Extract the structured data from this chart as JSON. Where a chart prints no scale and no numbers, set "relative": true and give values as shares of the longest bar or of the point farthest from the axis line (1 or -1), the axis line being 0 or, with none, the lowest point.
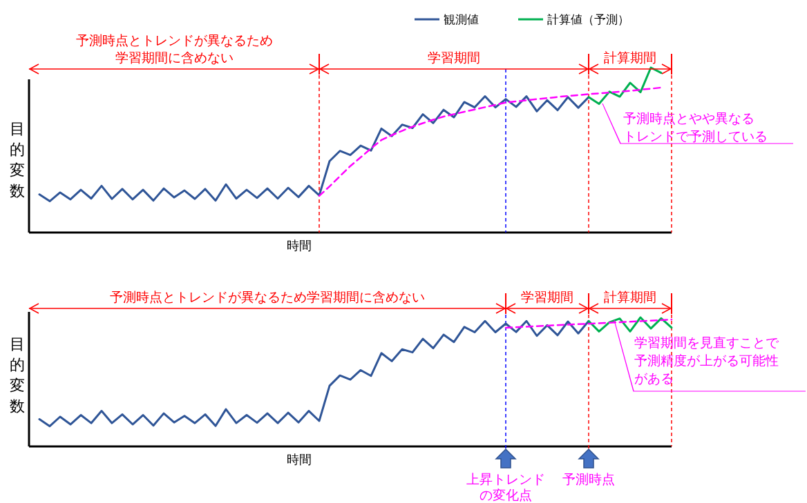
{
  "chart_data": [
    {
      "type": "line",
      "relative": true,
      "legend": "top right",
      "xlabel": "時間",
      "ylabel": "目的変数",
      "categories": [
        null,
        null,
        null,
        null,
        null,
        null,
        null,
        null,
        null,
        null,
        null,
        null,
        null,
        null,
        null,
        null,
        null,
        null,
        null,
        null,
        null,
        null,
        null,
        null,
        null,
        null,
        null,
        null,
        null,
        null,
        null,
        null,
        null,
        null,
        null,
        null,
        null,
        null,
        null,
        null,
        null,
        null,
        null,
        null,
        null,
        null,
        null,
        null,
        null,
        null,
        null,
        null,
        null,
        null,
        null,
        null,
        null,
        null,
        null,
        null,
        null,
        null,
        null
      ],
      "series": [
        {
          "name": "観測値",
          "color": "#2f5597",
          "values": [
            null,
            0.231,
            0.19,
            0.243,
            0.201,
            0.259,
            0.206,
            0.283,
            0.204,
            0.264,
            0.201,
            0.259,
            0.194,
            0.267,
            0.213,
            0.255,
            0.204,
            0.264,
            0.194,
            0.292,
            0.206,
            0.259,
            0.21,
            0.267,
            0.206,
            0.271,
            0.215,
            0.283,
            0.225,
            0.433,
            0.495,
            0.47,
            0.527,
            0.497,
            0.63,
            0.585,
            0.654,
            0.634,
            0.717,
            0.664,
            0.744,
            0.699,
            0.791,
            0.759,
            0.826,
            0.759,
            0.809,
            0.762,
            0.826,
            0.735,
            0.802,
            0.742,
            0.821,
            0.757,
            0.821,
            null,
            null,
            null,
            null,
            null,
            null,
            null,
            null
          ]
        },
        {
          "name": "計算値（予測）",
          "color": "#00b050",
          "values": [
            null,
            null,
            null,
            null,
            null,
            null,
            null,
            null,
            null,
            null,
            null,
            null,
            null,
            null,
            null,
            null,
            null,
            null,
            null,
            null,
            null,
            null,
            null,
            null,
            null,
            null,
            null,
            null,
            null,
            null,
            null,
            null,
            null,
            null,
            null,
            null,
            null,
            null,
            null,
            null,
            null,
            null,
            null,
            null,
            null,
            null,
            null,
            null,
            null,
            null,
            null,
            null,
            null,
            null,
            0.821,
            0.78,
            0.854,
            0.824,
            0.908,
            0.851,
            1.0,
            0.968,
            null
          ]
        },
        {
          "color": "#ff00ff",
          "line_style": "dashed",
          "values": [
            null,
            null,
            null,
            null,
            null,
            null,
            null,
            null,
            null,
            null,
            null,
            null,
            null,
            null,
            null,
            null,
            null,
            null,
            null,
            null,
            null,
            null,
            null,
            null,
            null,
            null,
            null,
            null,
            0.222,
            0.28,
            0.342,
            0.403,
            0.456,
            0.51,
            0.561,
            0.59,
            0.617,
            0.642,
            0.663,
            0.684,
            0.703,
            0.718,
            0.732,
            0.746,
            0.76,
            0.774,
            0.788,
            0.795,
            0.802,
            0.809,
            0.815,
            0.822,
            0.828,
            0.833,
            0.839,
            0.844,
            0.849,
            0.854,
            0.859,
            0.866,
            0.872,
            0.879,
            null
          ]
        }
      ],
      "annotations": [
        "予測時点とトレンドが異なるため学習期間に含めない",
        "学習期間",
        "計算期間",
        "予測時点とやや異なるトレンドで予測している"
      ]
    },
    {
      "type": "line",
      "relative": true,
      "xlabel": "時間",
      "ylabel": "目的変数",
      "categories": [
        null,
        null,
        null,
        null,
        null,
        null,
        null,
        null,
        null,
        null,
        null,
        null,
        null,
        null,
        null,
        null,
        null,
        null,
        null,
        null,
        null,
        null,
        null,
        null,
        null,
        null,
        null,
        null,
        null,
        null,
        null,
        null,
        null,
        null,
        null,
        null,
        null,
        null,
        null,
        null,
        null,
        null,
        null,
        null,
        null,
        null,
        null,
        null,
        null,
        null,
        null,
        null,
        null,
        null,
        null,
        null,
        null,
        null,
        null,
        null,
        null,
        null,
        null
      ],
      "series": [
        {
          "color": "#2f5597",
          "values": [
            null,
            0.211,
            0.157,
            0.23,
            0.171,
            0.243,
            0.181,
            0.275,
            0.181,
            0.248,
            0.171,
            0.243,
            0.162,
            0.256,
            0.186,
            0.237,
            0.181,
            0.248,
            0.159,
            0.288,
            0.181,
            0.243,
            0.184,
            0.256,
            0.181,
            0.261,
            0.186,
            0.275,
            0.198,
            0.47,
            0.55,
            0.518,
            0.591,
            0.547,
            0.723,
            0.661,
            0.753,
            0.729,
            0.834,
            0.761,
            0.866,
            0.809,
            0.926,
            0.885,
            0.972,
            0.885,
            0.952,
            0.887,
            0.972,
            0.857,
            0.939,
            0.862,
            0.968,
            0.876,
            0.972,
            null,
            null,
            null,
            null,
            null,
            null,
            null,
            null
          ]
        },
        {
          "color": "#00b050",
          "values": [
            null,
            null,
            null,
            null,
            null,
            null,
            null,
            null,
            null,
            null,
            null,
            null,
            null,
            null,
            null,
            null,
            null,
            null,
            null,
            null,
            null,
            null,
            null,
            null,
            null,
            null,
            null,
            null,
            null,
            null,
            null,
            null,
            null,
            null,
            null,
            null,
            null,
            null,
            null,
            null,
            null,
            null,
            null,
            null,
            null,
            null,
            null,
            null,
            null,
            null,
            null,
            null,
            null,
            null,
            0.972,
            0.891,
            0.962,
            0.991,
            0.891,
            1.0,
            0.914,
            0.993,
            0.92
          ]
        },
        {
          "color": "#ff00ff",
          "line_style": "dashed",
          "values": [
            null,
            null,
            null,
            null,
            null,
            null,
            null,
            null,
            null,
            null,
            null,
            null,
            null,
            null,
            null,
            null,
            null,
            null,
            null,
            null,
            null,
            null,
            null,
            null,
            null,
            null,
            null,
            null,
            null,
            null,
            null,
            null,
            null,
            null,
            null,
            null,
            null,
            null,
            null,
            null,
            null,
            null,
            null,
            null,
            null,
            null,
            0.92,
            0.924,
            0.928,
            0.932,
            0.936,
            0.94,
            0.944,
            0.948,
            0.951,
            0.955,
            0.959,
            0.963,
            0.967,
            0.971,
            0.975,
            0.979,
            0.983
          ]
        }
      ],
      "annotations": [
        "予測時点とトレンドが異なるため学習期間に含めない",
        "学習期間",
        "計算期間",
        "学習期間を見直すことで予測精度が上がる可能性がある",
        "上昇トレンドの変化点",
        "予測時点"
      ]
    }
  ]
}
